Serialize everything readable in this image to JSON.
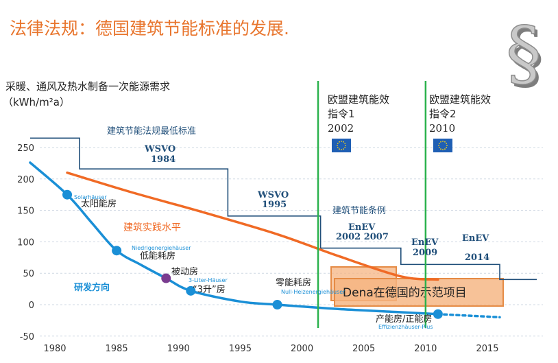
{
  "page": {
    "title": "法律法规：德国建筑节能标准的发展."
  },
  "icon": "section-sign-icon",
  "icon_glyph": "§",
  "colors": {
    "title": "#e8752d",
    "standard_line": "#1f4e79",
    "practice_line": "#f06a25",
    "research_line": "#1a8fd6",
    "research_dot": "#1a8fd6",
    "passive_dot": "#7a3b8f",
    "eu_line": "#2bb24c",
    "eu_flag": "#1f5fb4",
    "eu_star": "#f7d117",
    "dena_box": "#f5b481",
    "dena_border": "#e58b45",
    "gridline": "#cfd8e3",
    "axis_text": "#333333"
  },
  "chart_data": {
    "type": "line",
    "ylabel_line1": "采暖、通风及热水制备一次能源需求",
    "ylabel_line2": "（kWh/m²a）",
    "xlim": [
      1978,
      2019
    ],
    "ylim": [
      -50,
      270
    ],
    "x_ticks": [
      1980,
      1985,
      1990,
      1995,
      2000,
      2005,
      2010,
      2015
    ],
    "y_ticks": [
      250,
      200,
      150,
      100,
      50,
      0,
      -50
    ],
    "grid": true,
    "series": [
      {
        "name": "建筑节能法规最低标准",
        "style": "step",
        "points": [
          [
            1978,
            265
          ],
          [
            1982,
            265
          ],
          [
            1982,
            216
          ],
          [
            1994,
            216
          ],
          [
            1994,
            141
          ],
          [
            2001.5,
            141
          ],
          [
            2001.5,
            90
          ],
          [
            2008,
            90
          ],
          [
            2008,
            64
          ],
          [
            2016,
            64
          ],
          [
            2016,
            40
          ],
          [
            2019,
            40
          ]
        ]
      },
      {
        "name": "建筑实践水平",
        "style": "line",
        "points": [
          [
            1981,
            210
          ],
          [
            1986,
            180
          ],
          [
            1992,
            147
          ],
          [
            1998,
            112
          ],
          [
            2003,
            77
          ],
          [
            2008,
            45
          ],
          [
            2011,
            40
          ]
        ]
      },
      {
        "name": "研发方向",
        "style": "curve",
        "points": [
          [
            1978,
            226
          ],
          [
            1981,
            175
          ],
          [
            1983,
            130
          ],
          [
            1985,
            86
          ],
          [
            1987,
            63
          ],
          [
            1989,
            42
          ],
          [
            1991,
            22
          ],
          [
            1995,
            5
          ],
          [
            1998,
            0
          ],
          [
            2003,
            -7
          ],
          [
            2008,
            -12
          ],
          [
            2011,
            -15
          ]
        ],
        "extension": [
          [
            2011,
            -15
          ],
          [
            2014,
            -18
          ],
          [
            2016,
            -20
          ]
        ]
      }
    ],
    "milestones": [
      {
        "label_de": "Solarhäuser",
        "label_zh": "太阳能房",
        "x": 1981,
        "y": 175,
        "color_key": "research_dot"
      },
      {
        "label_de": "Niedrigenergiehäuser",
        "label_zh": "低能耗房",
        "x": 1985,
        "y": 86,
        "color_key": "research_dot"
      },
      {
        "label_de": "",
        "label_zh": "被动房",
        "x": 1989,
        "y": 42,
        "color_key": "passive_dot"
      },
      {
        "label_de": "3-Liter-Häuser",
        "label_zh": "“3升”房",
        "x": 1991,
        "y": 22,
        "color_key": "research_dot"
      },
      {
        "label_de": "Null-Heizenergiehäuser",
        "label_zh": "零能耗房",
        "x": 1998,
        "y": 0,
        "color_key": "research_dot"
      },
      {
        "label_de": "Effizienzhäuser-Plus",
        "label_zh": "产能房/正能房",
        "x": 2011,
        "y": -15,
        "color_key": "research_dot"
      }
    ],
    "standard_labels": [
      {
        "text": "建筑节能法规最低标准"
      },
      {
        "text_line1": "WSVO",
        "text_line2": "1984"
      },
      {
        "text_line1": "WSVO",
        "text_line2": "1995"
      },
      {
        "text": "建筑节能条例"
      },
      {
        "text_line1": "EnEV",
        "text_line2": "2002 2007"
      },
      {
        "text_line1": "EnEV",
        "text_line2": "2009"
      },
      {
        "text_line1": "EnEV",
        "text_line2": "2014"
      }
    ],
    "series_labels": {
      "practice": "建筑实践水平",
      "research": "研发方向"
    },
    "eu_directives": [
      {
        "x": 2001.3,
        "line1": "欧盟建筑能效",
        "line2": "指令1",
        "year": "2002"
      },
      {
        "x": 2010,
        "line1": "欧盟建筑能效",
        "line2": "指令2",
        "year": "2010"
      }
    ],
    "callout": {
      "text": "Dena在德国的示范项目"
    }
  }
}
